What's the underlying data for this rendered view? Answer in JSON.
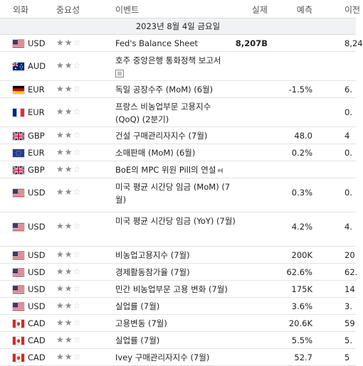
{
  "header": {
    "currency": "외화",
    "importance": "중요성",
    "event": "이벤트",
    "actual": "실제",
    "forecast": "예측",
    "previous": "이전"
  },
  "date": "2023년 8월 4일 금요일",
  "rows": [
    {
      "flag": "us",
      "code": "USD",
      "stars": 2,
      "event": "Fed's Balance Sheet",
      "actual": "8,207B",
      "forecast": "",
      "previous": "8,24",
      "height": 24
    },
    {
      "flag": "au",
      "code": "AUD",
      "stars": 2,
      "event": "호주 중앙은행 통화정책 보고서",
      "actual": "",
      "forecast": "",
      "previous": "",
      "doc": true,
      "height": 41
    },
    {
      "flag": "de",
      "code": "EUR",
      "stars": 2,
      "event": "독일 공장수주 (MoM) (6월)",
      "actual": "",
      "forecast": "-1.5%",
      "previous": "6.",
      "height": 24
    },
    {
      "flag": "fr",
      "code": "EUR",
      "stars": 2,
      "event": "프랑스 비농업부문 고용지수 (QoQ) (2분기)",
      "actual": "",
      "forecast": "",
      "previous": "0.",
      "height": 41
    },
    {
      "flag": "gb",
      "code": "GBP",
      "stars": 2,
      "event": "건설 구매관리자지수 (7월)",
      "actual": "",
      "forecast": "48.0",
      "previous": "4",
      "height": 24
    },
    {
      "flag": "eu",
      "code": "EUR",
      "stars": 2,
      "event": "소매판매 (MoM) (6월)",
      "actual": "",
      "forecast": "0.2%",
      "previous": "0.",
      "height": 24
    },
    {
      "flag": "gb",
      "code": "GBP",
      "stars": 2,
      "event": "BoE의 MPC 위원 Pill의 연설",
      "actual": "",
      "forecast": "",
      "previous": "",
      "speaker": true,
      "height": 24
    },
    {
      "flag": "us",
      "code": "USD",
      "stars": 2,
      "event": "미국 평균 시간당 임금 (MoM) (7월)",
      "actual": "",
      "forecast": "0.3%",
      "previous": "0.",
      "height": 48
    },
    {
      "flag": "us",
      "code": "USD",
      "stars": 2,
      "event": "미국 평균 시간당 임금 (YoY) (7월)",
      "actual": "",
      "forecast": "4.2%",
      "previous": "4.",
      "height": 48
    },
    {
      "flag": "us",
      "code": "USD",
      "stars": 2,
      "event": "비농업고용지수 (7월)",
      "actual": "",
      "forecast": "200K",
      "previous": "20",
      "height": 24
    },
    {
      "flag": "us",
      "code": "USD",
      "stars": 2,
      "event": "경제활동참가율 (7월)",
      "actual": "",
      "forecast": "62.6%",
      "previous": "62.",
      "height": 24
    },
    {
      "flag": "us",
      "code": "USD",
      "stars": 2,
      "event": "민간 비농업부문 고용 변화 (7월)",
      "actual": "",
      "forecast": "175K",
      "previous": "14",
      "height": 24
    },
    {
      "flag": "us",
      "code": "USD",
      "stars": 2,
      "event": "실업률 (7월)",
      "actual": "",
      "forecast": "3.6%",
      "previous": "3.",
      "height": 24
    },
    {
      "flag": "ca",
      "code": "CAD",
      "stars": 2,
      "event": "고용변동 (7월)",
      "actual": "",
      "forecast": "20.6K",
      "previous": "59",
      "height": 24
    },
    {
      "flag": "ca",
      "code": "CAD",
      "stars": 2,
      "event": "실업률 (7월)",
      "actual": "",
      "forecast": "5.5%",
      "previous": "5.",
      "height": 24
    },
    {
      "flag": "ca",
      "code": "CAD",
      "stars": 2,
      "event": "Ivey 구매관리자지수 (7월)",
      "actual": "",
      "forecast": "52.7",
      "previous": "5",
      "height": 24
    }
  ]
}
